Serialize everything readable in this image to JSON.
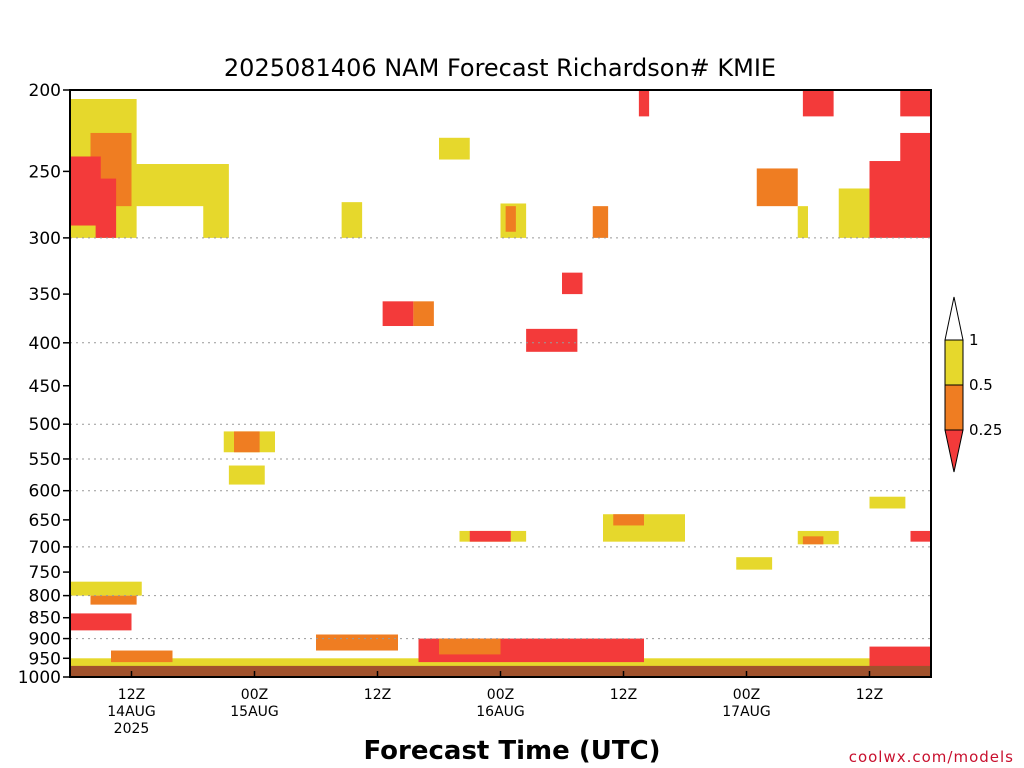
{
  "chart_data": {
    "type": "heatmap",
    "title": "2025081406 NAM Forecast Richardson# KMIE",
    "xlabel": "Forecast Time (UTC)",
    "ylabel": "",
    "watermark": "coolwx.com/models",
    "y_scale": "log-pressure",
    "y_direction": "inverted",
    "ylim": [
      1000,
      200
    ],
    "y_ticks": [
      200,
      250,
      300,
      350,
      400,
      450,
      500,
      550,
      600,
      650,
      700,
      750,
      800,
      850,
      900,
      950,
      1000
    ],
    "y_dotted_grid": [
      300,
      400,
      500,
      550,
      600,
      700,
      800,
      900,
      1000
    ],
    "x_range_hours": [
      0,
      84
    ],
    "x_ticks": [
      {
        "hour": 6,
        "lines": [
          "12Z",
          "14AUG",
          "2025"
        ]
      },
      {
        "hour": 18,
        "lines": [
          "00Z",
          "15AUG"
        ]
      },
      {
        "hour": 30,
        "lines": [
          "12Z"
        ]
      },
      {
        "hour": 42,
        "lines": [
          "00Z",
          "16AUG"
        ]
      },
      {
        "hour": 54,
        "lines": [
          "12Z"
        ]
      },
      {
        "hour": 66,
        "lines": [
          "00Z",
          "17AUG"
        ]
      },
      {
        "hour": 78,
        "lines": [
          "12Z"
        ]
      }
    ],
    "colorbar": {
      "labels": [
        "1",
        "0.5",
        "0.25"
      ],
      "bins": [
        {
          "range": ">1",
          "color": "#ffffff"
        },
        {
          "range": "0.5-1",
          "color": "#e6d82c"
        },
        {
          "range": "0.25-0.5",
          "color": "#ef7d22"
        },
        {
          "range": "<0.25",
          "color": "#f33a3a"
        }
      ]
    },
    "below_ground_color": "#a0522d",
    "below_ground_pressure": 970,
    "regions": [
      {
        "t0": 0,
        "t1": 6.5,
        "p0": 205,
        "p1": 300,
        "cat": "yellow"
      },
      {
        "t0": 2,
        "t1": 6,
        "p0": 225,
        "p1": 275,
        "cat": "orange"
      },
      {
        "t0": 0,
        "t1": 3,
        "p0": 240,
        "p1": 290,
        "cat": "red"
      },
      {
        "t0": 2.5,
        "t1": 4.5,
        "p0": 255,
        "p1": 300,
        "cat": "red"
      },
      {
        "t0": 6,
        "t1": 15,
        "p0": 245,
        "p1": 275,
        "cat": "yellow"
      },
      {
        "t0": 13,
        "t1": 15.5,
        "p0": 245,
        "p1": 300,
        "cat": "yellow"
      },
      {
        "t0": 26.5,
        "t1": 28.5,
        "p0": 272,
        "p1": 300,
        "cat": "yellow"
      },
      {
        "t0": 36,
        "t1": 39,
        "p0": 228,
        "p1": 242,
        "cat": "yellow"
      },
      {
        "t0": 42,
        "t1": 44.5,
        "p0": 273,
        "p1": 300,
        "cat": "yellow"
      },
      {
        "t0": 42.5,
        "t1": 43.5,
        "p0": 275,
        "p1": 295,
        "cat": "orange"
      },
      {
        "t0": 51,
        "t1": 52.5,
        "p0": 275,
        "p1": 300,
        "cat": "orange"
      },
      {
        "t0": 55.5,
        "t1": 56.5,
        "p0": 200,
        "p1": 215,
        "cat": "red"
      },
      {
        "t0": 67,
        "t1": 71,
        "p0": 248,
        "p1": 275,
        "cat": "orange"
      },
      {
        "t0": 71,
        "t1": 72,
        "p0": 275,
        "p1": 300,
        "cat": "yellow"
      },
      {
        "t0": 75,
        "t1": 78,
        "p0": 262,
        "p1": 300,
        "cat": "yellow"
      },
      {
        "t0": 78,
        "t1": 84,
        "p0": 243,
        "p1": 300,
        "cat": "red"
      },
      {
        "t0": 71.5,
        "t1": 74.5,
        "p0": 200,
        "p1": 215,
        "cat": "red"
      },
      {
        "t0": 81,
        "t1": 84,
        "p0": 200,
        "p1": 215,
        "cat": "red"
      },
      {
        "t0": 81,
        "t1": 84,
        "p0": 225,
        "p1": 245,
        "cat": "red"
      },
      {
        "t0": 30.5,
        "t1": 33.5,
        "p0": 357,
        "p1": 382,
        "cat": "red"
      },
      {
        "t0": 33.5,
        "t1": 35.5,
        "p0": 357,
        "p1": 382,
        "cat": "orange"
      },
      {
        "t0": 44.5,
        "t1": 49.5,
        "p0": 385,
        "p1": 410,
        "cat": "red"
      },
      {
        "t0": 48,
        "t1": 50,
        "p0": 330,
        "p1": 350,
        "cat": "red"
      },
      {
        "t0": 15,
        "t1": 20,
        "p0": 510,
        "p1": 540,
        "cat": "yellow"
      },
      {
        "t0": 16,
        "t1": 18.5,
        "p0": 510,
        "p1": 540,
        "cat": "orange"
      },
      {
        "t0": 15.5,
        "t1": 19,
        "p0": 560,
        "p1": 590,
        "cat": "yellow"
      },
      {
        "t0": 38,
        "t1": 44.5,
        "p0": 670,
        "p1": 690,
        "cat": "yellow"
      },
      {
        "t0": 39,
        "t1": 43,
        "p0": 670,
        "p1": 690,
        "cat": "red"
      },
      {
        "t0": 52,
        "t1": 60,
        "p0": 640,
        "p1": 690,
        "cat": "yellow"
      },
      {
        "t0": 53,
        "t1": 56,
        "p0": 640,
        "p1": 660,
        "cat": "orange"
      },
      {
        "t0": 71,
        "t1": 75,
        "p0": 670,
        "p1": 695,
        "cat": "yellow"
      },
      {
        "t0": 71.5,
        "t1": 73.5,
        "p0": 680,
        "p1": 695,
        "cat": "orange"
      },
      {
        "t0": 65,
        "t1": 68.5,
        "p0": 720,
        "p1": 745,
        "cat": "yellow"
      },
      {
        "t0": 78,
        "t1": 81.5,
        "p0": 610,
        "p1": 630,
        "cat": "yellow"
      },
      {
        "t0": 82,
        "t1": 84,
        "p0": 670,
        "p1": 690,
        "cat": "red"
      },
      {
        "t0": 0,
        "t1": 7,
        "p0": 770,
        "p1": 800,
        "cat": "yellow"
      },
      {
        "t0": 2,
        "t1": 6.5,
        "p0": 800,
        "p1": 820,
        "cat": "orange"
      },
      {
        "t0": 0,
        "t1": 6,
        "p0": 840,
        "p1": 880,
        "cat": "red"
      },
      {
        "t0": 0,
        "t1": 84,
        "p0": 950,
        "p1": 975,
        "cat": "yellow"
      },
      {
        "t0": 4,
        "t1": 10,
        "p0": 930,
        "p1": 960,
        "cat": "orange"
      },
      {
        "t0": 24,
        "t1": 32,
        "p0": 890,
        "p1": 930,
        "cat": "orange"
      },
      {
        "t0": 34,
        "t1": 56,
        "p0": 900,
        "p1": 960,
        "cat": "red"
      },
      {
        "t0": 36,
        "t1": 42,
        "p0": 900,
        "p1": 940,
        "cat": "orange"
      },
      {
        "t0": 78,
        "t1": 84,
        "p0": 920,
        "p1": 975,
        "cat": "red"
      }
    ]
  }
}
